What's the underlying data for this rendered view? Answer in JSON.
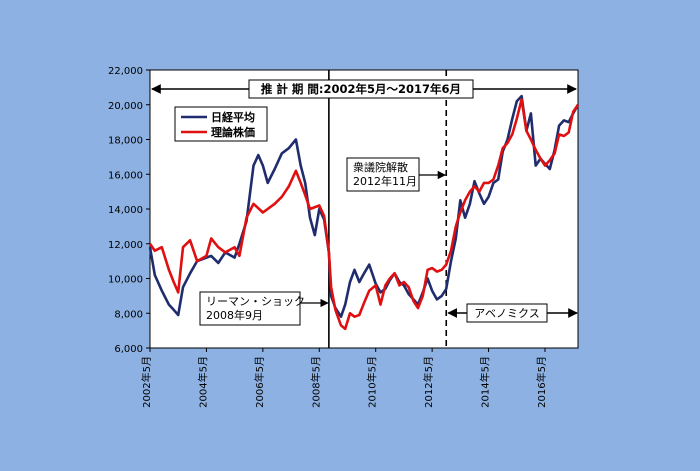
{
  "chart_data": {
    "type": "line",
    "title": "推 計 期 間:2002年5月～2017年6月",
    "xlabel": "",
    "ylabel": "",
    "ylim": [
      6000,
      22000
    ],
    "yticks": [
      "6,000",
      "8,000",
      "10,000",
      "12,000",
      "14,000",
      "16,000",
      "18,000",
      "20,000",
      "22,000"
    ],
    "xticks": [
      {
        "label": "2002年5月",
        "t": 2002.33
      },
      {
        "label": "2004年5月",
        "t": 2004.33
      },
      {
        "label": "2006年5月",
        "t": 2006.33
      },
      {
        "label": "2008年5月",
        "t": 2008.33
      },
      {
        "label": "2010年5月",
        "t": 2010.33
      },
      {
        "label": "2012年5月",
        "t": 2012.33
      },
      {
        "label": "2014年5月",
        "t": 2014.33
      },
      {
        "label": "2016年5月",
        "t": 2016.33
      }
    ],
    "xrange": [
      2002.33,
      2017.5
    ],
    "grid": false,
    "legend": "top-left",
    "series": [
      {
        "name": "日経平均",
        "color": "#1f2d6e",
        "points": [
          [
            2002.33,
            11800
          ],
          [
            2002.5,
            10200
          ],
          [
            2002.75,
            9300
          ],
          [
            2003.0,
            8500
          ],
          [
            2003.17,
            8200
          ],
          [
            2003.33,
            7900
          ],
          [
            2003.5,
            9500
          ],
          [
            2003.75,
            10300
          ],
          [
            2004.0,
            11000
          ],
          [
            2004.33,
            11200
          ],
          [
            2004.5,
            11300
          ],
          [
            2004.75,
            10900
          ],
          [
            2005.0,
            11500
          ],
          [
            2005.33,
            11200
          ],
          [
            2005.5,
            12000
          ],
          [
            2005.75,
            13300
          ],
          [
            2006.0,
            16500
          ],
          [
            2006.17,
            17100
          ],
          [
            2006.33,
            16500
          ],
          [
            2006.5,
            15500
          ],
          [
            2006.75,
            16300
          ],
          [
            2007.0,
            17200
          ],
          [
            2007.25,
            17500
          ],
          [
            2007.5,
            18000
          ],
          [
            2007.67,
            16500
          ],
          [
            2007.83,
            15500
          ],
          [
            2008.0,
            13500
          ],
          [
            2008.17,
            12500
          ],
          [
            2008.33,
            14000
          ],
          [
            2008.5,
            13400
          ],
          [
            2008.67,
            11500
          ],
          [
            2008.75,
            9000
          ],
          [
            2008.9,
            8300
          ],
          [
            2009.1,
            7800
          ],
          [
            2009.25,
            8500
          ],
          [
            2009.42,
            9800
          ],
          [
            2009.58,
            10500
          ],
          [
            2009.75,
            9800
          ],
          [
            2009.92,
            10300
          ],
          [
            2010.1,
            10800
          ],
          [
            2010.33,
            9700
          ],
          [
            2010.5,
            9200
          ],
          [
            2010.67,
            9400
          ],
          [
            2010.83,
            9900
          ],
          [
            2011.0,
            10300
          ],
          [
            2011.17,
            9800
          ],
          [
            2011.33,
            9600
          ],
          [
            2011.5,
            9100
          ],
          [
            2011.67,
            8800
          ],
          [
            2011.83,
            8500
          ],
          [
            2012.0,
            9200
          ],
          [
            2012.17,
            10000
          ],
          [
            2012.33,
            9300
          ],
          [
            2012.5,
            8800
          ],
          [
            2012.67,
            9000
          ],
          [
            2012.83,
            9400
          ],
          [
            2013.0,
            11000
          ],
          [
            2013.17,
            12300
          ],
          [
            2013.33,
            14500
          ],
          [
            2013.5,
            13500
          ],
          [
            2013.67,
            14300
          ],
          [
            2013.83,
            15600
          ],
          [
            2014.0,
            14900
          ],
          [
            2014.17,
            14300
          ],
          [
            2014.33,
            14700
          ],
          [
            2014.5,
            15500
          ],
          [
            2014.67,
            15700
          ],
          [
            2014.83,
            17300
          ],
          [
            2015.0,
            18000
          ],
          [
            2015.17,
            19200
          ],
          [
            2015.33,
            20200
          ],
          [
            2015.5,
            20500
          ],
          [
            2015.67,
            18500
          ],
          [
            2015.83,
            19500
          ],
          [
            2016.0,
            16500
          ],
          [
            2016.17,
            16900
          ],
          [
            2016.33,
            16600
          ],
          [
            2016.5,
            16300
          ],
          [
            2016.67,
            17400
          ],
          [
            2016.83,
            18800
          ],
          [
            2017.0,
            19100
          ],
          [
            2017.17,
            19000
          ],
          [
            2017.33,
            19500
          ],
          [
            2017.5,
            20000
          ]
        ]
      },
      {
        "name": "理論株価",
        "color": "#e01010",
        "points": [
          [
            2002.33,
            12000
          ],
          [
            2002.5,
            11600
          ],
          [
            2002.75,
            11800
          ],
          [
            2003.0,
            10500
          ],
          [
            2003.17,
            9800
          ],
          [
            2003.33,
            9200
          ],
          [
            2003.5,
            11800
          ],
          [
            2003.75,
            12200
          ],
          [
            2004.0,
            11000
          ],
          [
            2004.33,
            11300
          ],
          [
            2004.5,
            12300
          ],
          [
            2004.75,
            11800
          ],
          [
            2005.0,
            11500
          ],
          [
            2005.33,
            11800
          ],
          [
            2005.5,
            11300
          ],
          [
            2005.75,
            13500
          ],
          [
            2006.0,
            14300
          ],
          [
            2006.33,
            13800
          ],
          [
            2006.75,
            14300
          ],
          [
            2007.0,
            14700
          ],
          [
            2007.25,
            15300
          ],
          [
            2007.5,
            16200
          ],
          [
            2007.67,
            15500
          ],
          [
            2007.83,
            14800
          ],
          [
            2008.0,
            14000
          ],
          [
            2008.33,
            14200
          ],
          [
            2008.5,
            13600
          ],
          [
            2008.67,
            11500
          ],
          [
            2008.75,
            9500
          ],
          [
            2008.9,
            8200
          ],
          [
            2009.1,
            7300
          ],
          [
            2009.25,
            7100
          ],
          [
            2009.42,
            8000
          ],
          [
            2009.58,
            7800
          ],
          [
            2009.75,
            7900
          ],
          [
            2009.92,
            8600
          ],
          [
            2010.1,
            9300
          ],
          [
            2010.33,
            9600
          ],
          [
            2010.5,
            8500
          ],
          [
            2010.67,
            9600
          ],
          [
            2010.83,
            10000
          ],
          [
            2011.0,
            10300
          ],
          [
            2011.17,
            9600
          ],
          [
            2011.33,
            9800
          ],
          [
            2011.5,
            9500
          ],
          [
            2011.67,
            8700
          ],
          [
            2011.83,
            8300
          ],
          [
            2012.0,
            9000
          ],
          [
            2012.17,
            10500
          ],
          [
            2012.33,
            10600
          ],
          [
            2012.5,
            10400
          ],
          [
            2012.67,
            10500
          ],
          [
            2012.83,
            10800
          ],
          [
            2013.0,
            11600
          ],
          [
            2013.17,
            13000
          ],
          [
            2013.33,
            13800
          ],
          [
            2013.5,
            14500
          ],
          [
            2013.67,
            15000
          ],
          [
            2013.83,
            15300
          ],
          [
            2014.0,
            15000
          ],
          [
            2014.17,
            15500
          ],
          [
            2014.33,
            15500
          ],
          [
            2014.5,
            15700
          ],
          [
            2014.67,
            16500
          ],
          [
            2014.83,
            17500
          ],
          [
            2015.0,
            17800
          ],
          [
            2015.17,
            18300
          ],
          [
            2015.33,
            19200
          ],
          [
            2015.5,
            20300
          ],
          [
            2015.67,
            18500
          ],
          [
            2015.83,
            18000
          ],
          [
            2016.0,
            17400
          ],
          [
            2016.17,
            16900
          ],
          [
            2016.33,
            16500
          ],
          [
            2016.5,
            16800
          ],
          [
            2016.67,
            17200
          ],
          [
            2016.83,
            18300
          ],
          [
            2017.0,
            18200
          ],
          [
            2017.17,
            18400
          ],
          [
            2017.33,
            19600
          ],
          [
            2017.5,
            20000
          ]
        ]
      }
    ],
    "annotations": [
      {
        "label": "リーマン・ショック\n2008年9月",
        "t": 2008.67,
        "style": "solid"
      },
      {
        "label": "衆議院解散\n2012年11月",
        "t": 2012.83,
        "style": "dashed"
      },
      {
        "label": "アベノミクス",
        "t_from": 2012.83,
        "t_to": 2017.5,
        "style": "span"
      }
    ]
  },
  "colors": {
    "background": "#8db1e2",
    "plot_area": "#ffffff",
    "frame": "#000000"
  }
}
